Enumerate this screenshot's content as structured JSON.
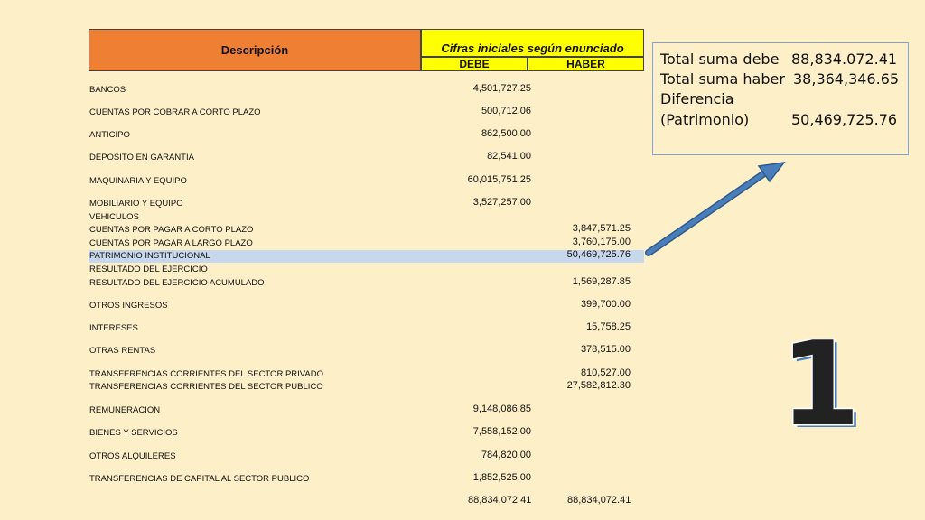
{
  "header": {
    "description": "Descripción",
    "cifras": "Cifras iniciales según enunciado",
    "debe": "DEBE",
    "haber": "HABER"
  },
  "rows": [
    {
      "name": "BANCOS",
      "debe": "4,501,727.25",
      "haber": ""
    },
    {
      "name": "CUENTAS POR COBRAR A CORTO PLAZO",
      "debe": "500,712.06",
      "haber": ""
    },
    {
      "name": "ANTICIPO",
      "debe": "862,500.00",
      "haber": ""
    },
    {
      "name": "DEPOSITO EN GARANTIA",
      "debe": "82,541.00",
      "haber": ""
    },
    {
      "name": "MAQUINARIA Y EQUIPO",
      "debe": "60,015,751.25",
      "haber": ""
    },
    {
      "name": "MOBILIARIO Y EQUIPO",
      "debe": "3,527,257.00",
      "haber": ""
    },
    {
      "name": "VEHICULOS",
      "debe": "",
      "haber": ""
    },
    {
      "name": "CUENTAS POR PAGAR  A CORTO PLAZO",
      "debe": "",
      "haber": "3,847,571.25"
    },
    {
      "name": "CUENTAS POR PAGAR A LARGO PLAZO",
      "debe": "",
      "haber": "3,760,175.00"
    },
    {
      "name": "PATRIMONIO INSTITUCIONAL",
      "debe": "",
      "haber": "50,469,725.76"
    },
    {
      "name": "RESULTADO DEL EJERCICIO",
      "debe": "",
      "haber": ""
    },
    {
      "name": "RESULTADO DEL EJERCICIO ACUMULADO",
      "debe": "",
      "haber": "1,569,287.85"
    },
    {
      "name": "OTROS INGRESOS",
      "debe": "",
      "haber": "399,700.00"
    },
    {
      "name": "INTERESES",
      "debe": "",
      "haber": "15,758.25"
    },
    {
      "name": "OTRAS RENTAS",
      "debe": "",
      "haber": "378,515.00"
    },
    {
      "name": "TRANSFERENCIAS CORRIENTES DEL SECTOR PRIVADO",
      "debe": "",
      "haber": "810,527.00"
    },
    {
      "name": "TRANSFERENCIAS CORRIENTES DEL SECTOR PUBLICO",
      "debe": "",
      "haber": "27,582,812.30"
    },
    {
      "name": "REMUNERACION",
      "debe": "9,148,086.85",
      "haber": ""
    },
    {
      "name": "BIENES Y SERVICIOS",
      "debe": "7,558,152.00",
      "haber": ""
    },
    {
      "name": "OTROS ALQUILERES",
      "debe": "784,820.00",
      "haber": ""
    },
    {
      "name": "TRANSFERENCIAS DE CAPITAL AL SECTOR PUBLICO",
      "debe": "1,852,525.00",
      "haber": ""
    }
  ],
  "totals": {
    "debe": "88,834,072.41",
    "haber": "88,834,072.41"
  },
  "summary": {
    "debe_label": "Total suma debe",
    "debe_value": "88,834.072.41",
    "haber_label": "Total suma haber",
    "haber_value": "38,364,346.65",
    "diff_label": "Diferencia",
    "patrimonio_label": "(Patrimonio)",
    "patrimonio_value": "50,469,725.76"
  },
  "slide_number": "1",
  "colors": {
    "background": "#fdefc8",
    "header_orange": "#ee7f33",
    "header_yellow": "#ffff00",
    "highlight": "#c7d7ec",
    "arrow": "#4a7ebb"
  }
}
